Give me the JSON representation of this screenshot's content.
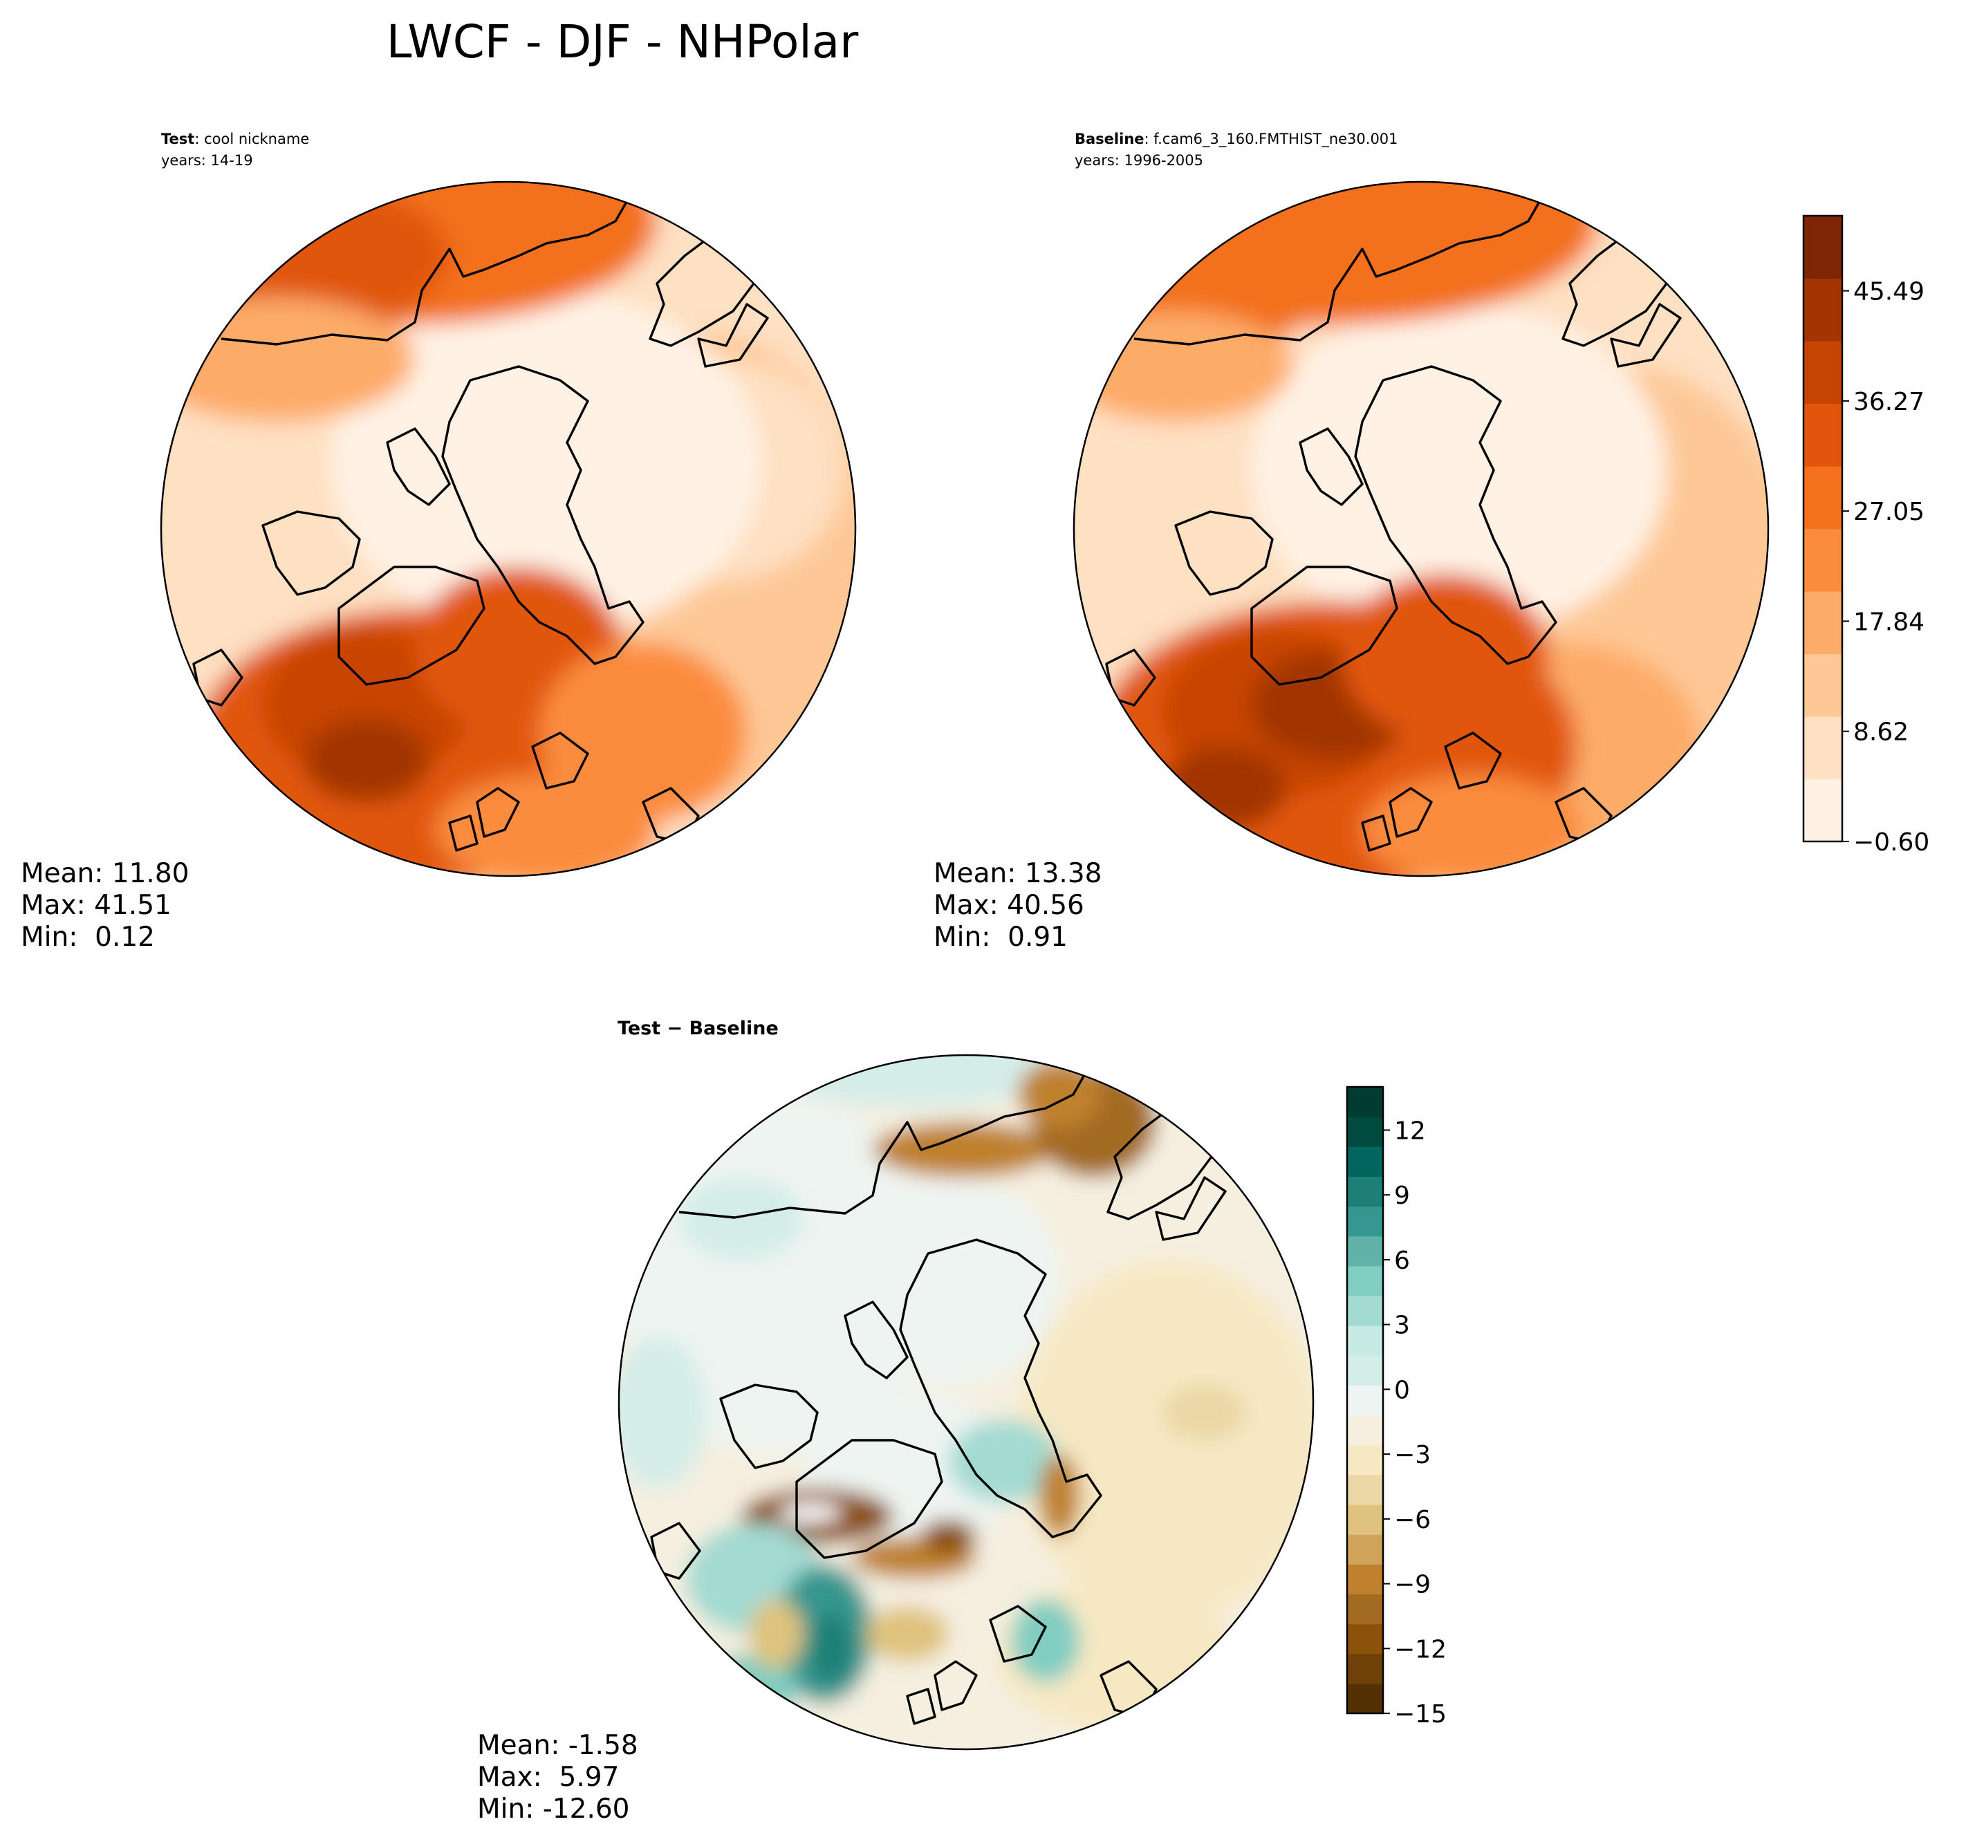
{
  "title": "LWCF - DJF - NHPolar",
  "panels": {
    "test": {
      "label_bold": "Test",
      "label_rest": ": cool nickname",
      "years": "years: 14-19",
      "stats": {
        "mean": "Mean: 11.80",
        "max": "Max: 41.51",
        "min": "Min:  0.12"
      }
    },
    "baseline": {
      "label_bold": "Baseline",
      "label_rest": ": f.cam6_3_160.FMTHIST_ne30.001",
      "years": "years: 1996-2005",
      "stats": {
        "mean": "Mean: 13.38",
        "max": "Max: 40.56",
        "min": "Min:  0.91"
      }
    },
    "diff": {
      "label": "Test − Baseline",
      "stats": {
        "mean": "Mean: -1.58",
        "max": "Max:  5.97",
        "min": "Min: -12.60"
      }
    }
  },
  "colorbars": {
    "field": {
      "colormap": "Oranges",
      "colors": [
        "#fff2e5",
        "#fee0c2",
        "#fdc896",
        "#fdab68",
        "#fb8c3d",
        "#f3711c",
        "#e1560c",
        "#c74503",
        "#a13503",
        "#7f2704"
      ],
      "tick_labels": [
        "−0.60",
        "8.62",
        "17.84",
        "27.05",
        "36.27",
        "45.49"
      ]
    },
    "diff": {
      "colormap": "BrBG",
      "colors": [
        "#543005",
        "#6f4109",
        "#8c510a",
        "#a36a22",
        "#bf812d",
        "#cfa35a",
        "#dfc27d",
        "#ead7a6",
        "#f6e8c3",
        "#f5efe0",
        "#eef4f1",
        "#d4ede8",
        "#c7eae5",
        "#a3dad1",
        "#80cdc1",
        "#5fb3a9",
        "#35978f",
        "#1d7f76",
        "#01665e",
        "#004a40",
        "#003c30"
      ],
      "tick_labels": [
        "−15",
        "−12",
        "−9",
        "−6",
        "−3",
        "0",
        "3",
        "6",
        "9",
        "12"
      ]
    }
  }
}
